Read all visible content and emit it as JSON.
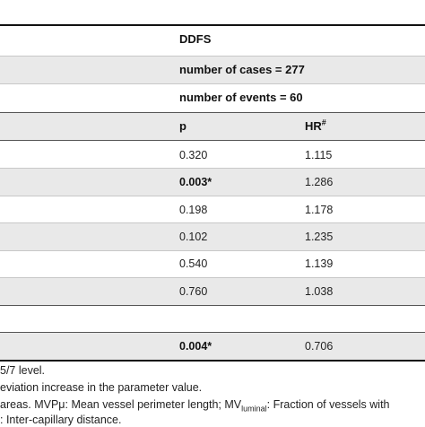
{
  "table": {
    "group_header": "DDFS",
    "number_of_cases": "number of cases = 277",
    "number_of_events": "number of events = 60",
    "col_p": "p",
    "col_hr": "HR",
    "col_hr_sup": "#",
    "rows": [
      {
        "p": "0.320",
        "hr": "1.115",
        "p_bold": false
      },
      {
        "p": "0.003*",
        "hr": "1.286",
        "p_bold": true
      },
      {
        "p": "0.198",
        "hr": "1.178",
        "p_bold": false
      },
      {
        "p": "0.102",
        "hr": "1.235",
        "p_bold": false
      },
      {
        "p": "0.540",
        "hr": "1.139",
        "p_bold": false
      },
      {
        "p": "0.760",
        "hr": "1.038",
        "p_bold": false
      }
    ],
    "final_row": {
      "p": "0.004*",
      "hr": "0.706",
      "p_bold": true
    }
  },
  "footnotes": {
    "line1": "5/7 level.",
    "line2": "eviation increase in the parameter value.",
    "line3_a": " areas. MVPμ: Mean vessel perimeter length; MV",
    "line3_sub": "luminal",
    "line3_b": ": Fraction of vessels with",
    "line4": ": Inter-capillary distance."
  }
}
